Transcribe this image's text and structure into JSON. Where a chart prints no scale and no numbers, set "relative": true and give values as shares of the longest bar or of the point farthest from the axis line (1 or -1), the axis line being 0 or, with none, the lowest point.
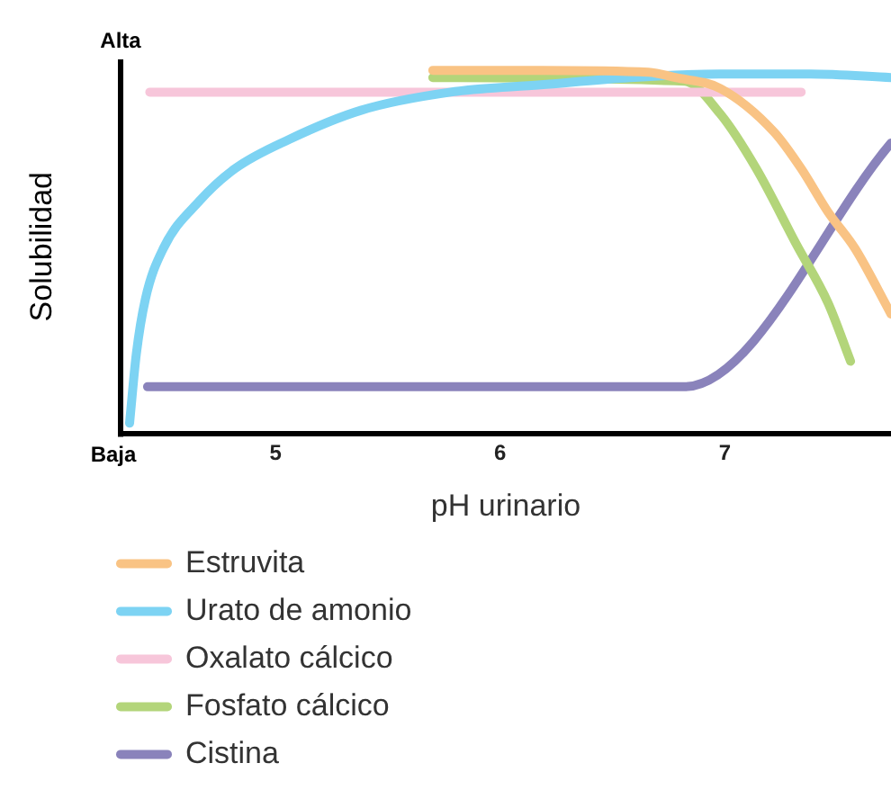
{
  "chart_data": {
    "type": "line",
    "relative": true,
    "xlabel": "pH urinario",
    "ylabel": "Solubilidad",
    "annotations": [
      "Alta",
      "Baja"
    ],
    "xlim": [
      4.31,
      7.74
    ],
    "xticks": [
      5,
      6,
      7
    ],
    "grid": false,
    "legend": "bottom left",
    "marker": "none",
    "line_style": "solid",
    "series": [
      {
        "name": "Estruvita",
        "color": "#f9c384",
        "x": [
          5.7,
          6.18,
          6.66,
          6.78,
          6.98,
          7.22,
          7.34,
          7.46,
          7.58,
          7.74
        ],
        "values": [
          1.0,
          1.0,
          0.995,
          0.98,
          0.95,
          0.83,
          0.73,
          0.61,
          0.51,
          0.33
        ]
      },
      {
        "name": "Urato de amonio",
        "color": "#7dd3f3",
        "x": [
          4.35,
          4.38,
          4.42,
          4.5,
          4.66,
          4.82,
          5.06,
          5.38,
          5.78,
          6.18,
          6.58,
          6.98,
          7.38,
          7.74
        ],
        "values": [
          0.03,
          0.22,
          0.37,
          0.51,
          0.64,
          0.73,
          0.81,
          0.89,
          0.94,
          0.96,
          0.98,
          0.99,
          0.99,
          0.98
        ]
      },
      {
        "name": "Oxalato cálcico",
        "color": "#f7c6da",
        "x": [
          4.44,
          7.34
        ],
        "values": [
          0.94,
          0.94
        ]
      },
      {
        "name": "Fosfato cálcico",
        "color": "#b3d57a",
        "x": [
          5.7,
          6.82,
          6.98,
          7.14,
          7.32,
          7.46,
          7.56
        ],
        "values": [
          0.98,
          0.97,
          0.88,
          0.73,
          0.52,
          0.36,
          0.2
        ]
      },
      {
        "name": "Cistina",
        "color": "#8a83bb",
        "x": [
          4.43,
          6.82,
          7.74
        ],
        "values": [
          0.13,
          0.13,
          0.8
        ]
      }
    ]
  }
}
